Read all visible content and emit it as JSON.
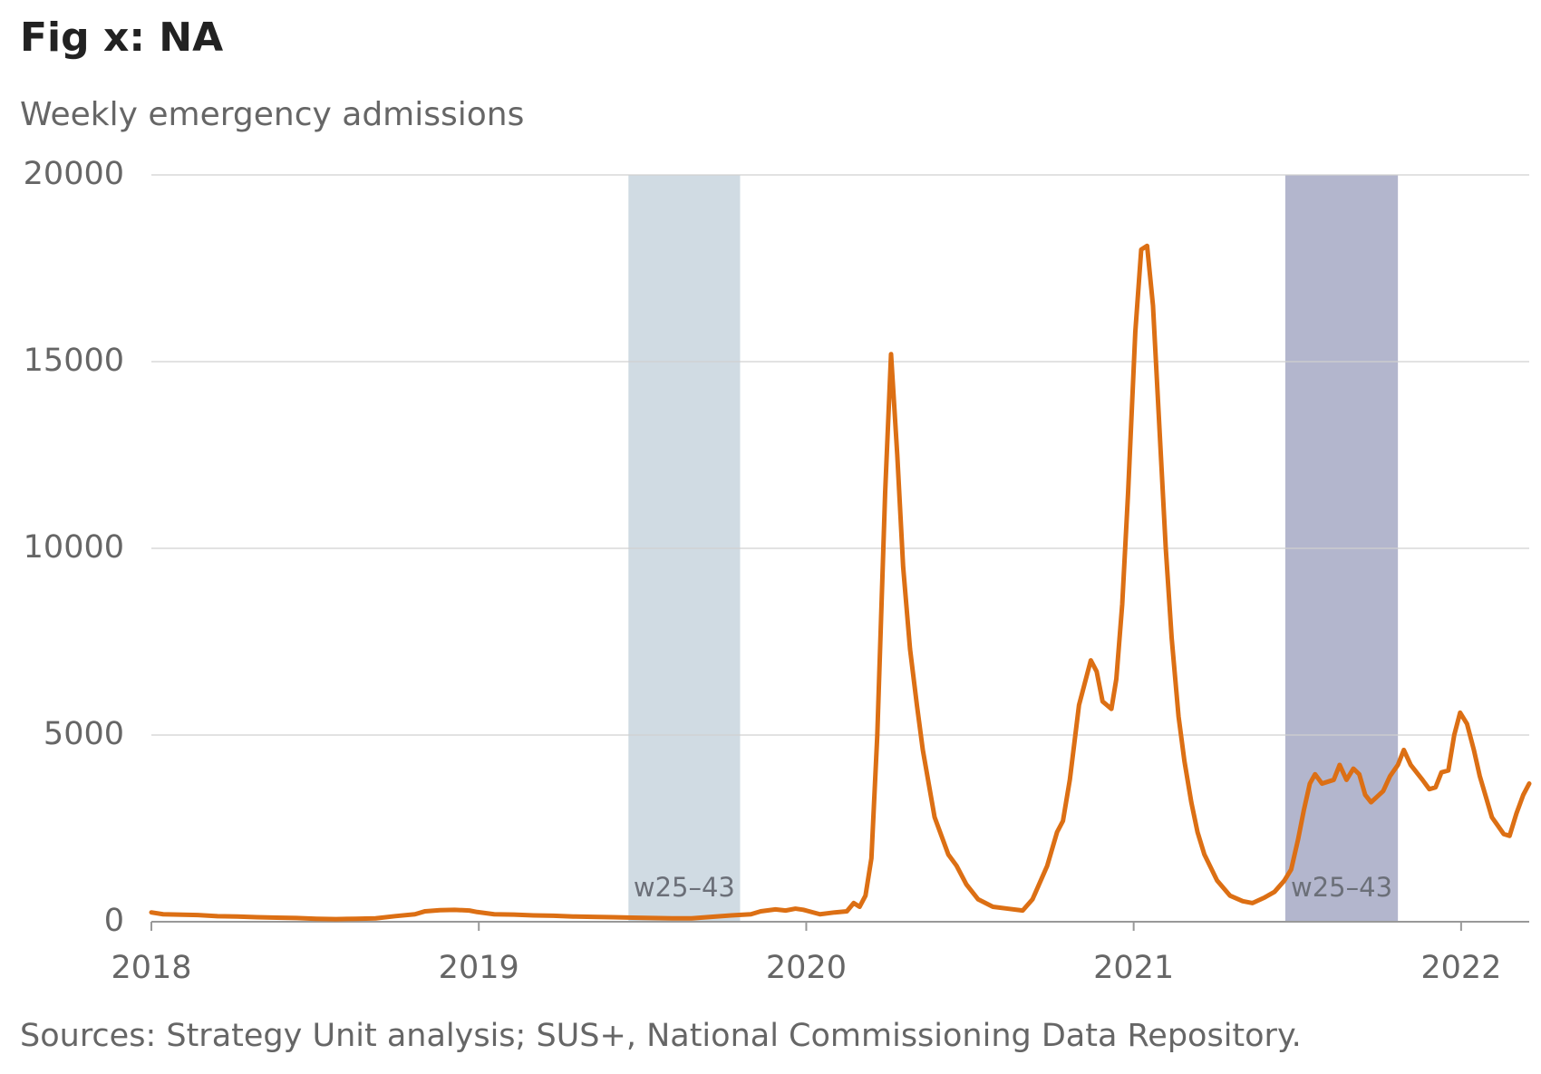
{
  "chart_data": {
    "type": "line",
    "title": "Fig x: NA",
    "subtitle": "Weekly emergency admissions",
    "source": "Sources: Strategy Unit analysis; SUS+, National Commissioning Data Repository.",
    "color": "#dc6f14",
    "x": [
      2018.0,
      2018.036,
      2018.081,
      2018.142,
      2018.202,
      2018.262,
      2018.323,
      2018.383,
      2018.443,
      2018.504,
      2018.564,
      2018.624,
      2018.685,
      2018.745,
      2018.805,
      2018.836,
      2018.881,
      2018.926,
      2018.971,
      2018.995,
      2019.047,
      2019.107,
      2019.167,
      2019.228,
      2019.288,
      2019.348,
      2019.409,
      2019.469,
      2019.529,
      2019.59,
      2019.65,
      2019.71,
      2019.771,
      2019.831,
      2019.861,
      2019.906,
      2019.937,
      2019.967,
      2019.991,
      2020.042,
      2020.087,
      2020.124,
      2020.145,
      2020.163,
      2020.181,
      2020.199,
      2020.217,
      2020.241,
      2020.259,
      2020.278,
      2020.296,
      2020.317,
      2020.338,
      2020.356,
      2020.392,
      2020.434,
      2020.459,
      2020.489,
      2020.525,
      2020.57,
      2020.615,
      2020.661,
      2020.691,
      2020.736,
      2020.766,
      2020.784,
      2020.805,
      2020.833,
      2020.869,
      2020.887,
      2020.905,
      2020.932,
      2020.947,
      2020.965,
      2020.983,
      2021.005,
      2021.023,
      2021.041,
      2021.059,
      2021.077,
      2021.098,
      2021.116,
      2021.137,
      2021.155,
      2021.176,
      2021.195,
      2021.216,
      2021.255,
      2021.294,
      2021.333,
      2021.363,
      2021.4,
      2021.43,
      2021.46,
      2021.481,
      2021.502,
      2021.52,
      2021.538,
      2021.554,
      2021.575,
      2021.611,
      2021.629,
      2021.65,
      2021.671,
      2021.689,
      2021.707,
      2021.725,
      2021.762,
      2021.783,
      2021.807,
      2021.825,
      2021.846,
      2021.882,
      2021.903,
      2021.922,
      2021.94,
      2021.961,
      2021.979,
      2021.997,
      2022.018,
      2022.039,
      2022.057,
      2022.094,
      2022.13,
      2022.148,
      2022.169,
      2022.19,
      2022.208
    ],
    "values": [
      250,
      200,
      190,
      180,
      150,
      140,
      120,
      110,
      100,
      80,
      70,
      80,
      90,
      150,
      200,
      280,
      310,
      320,
      300,
      260,
      200,
      190,
      170,
      160,
      140,
      130,
      120,
      110,
      100,
      90,
      90,
      130,
      170,
      200,
      280,
      330,
      300,
      350,
      320,
      200,
      250,
      280,
      500,
      400,
      700,
      1700,
      5000,
      11500,
      15200,
      12500,
      9500,
      7300,
      5800,
      4600,
      2800,
      1800,
      1500,
      1000,
      600,
      400,
      350,
      300,
      600,
      1500,
      2400,
      2700,
      3800,
      5800,
      7000,
      6700,
      5900,
      5700,
      6500,
      8500,
      11500,
      15800,
      18000,
      18100,
      16500,
      13500,
      10000,
      7600,
      5500,
      4300,
      3200,
      2400,
      1800,
      1100,
      700,
      550,
      500,
      650,
      800,
      1100,
      1400,
      2200,
      3000,
      3700,
      3950,
      3700,
      3800,
      4200,
      3800,
      4100,
      3950,
      3400,
      3200,
      3500,
      3900,
      4200,
      4600,
      4200,
      3800,
      3550,
      3600,
      4000,
      4050,
      5000,
      5600,
      5300,
      4600,
      3900,
      2800,
      2350,
      2300,
      2900,
      3400,
      3700
    ],
    "bands": [
      {
        "label": "w25–43",
        "x": [
          2019.457,
          2019.798
        ],
        "color": "#d0dbe3"
      },
      {
        "label": "w25–43",
        "x": [
          2021.463,
          2021.807
        ],
        "color": "#b3b6cd"
      }
    ],
    "xlim": [
      2018,
      2022.208
    ],
    "xticks": [
      2018,
      2019,
      2020,
      2021,
      2022
    ],
    "ylim": [
      0,
      20000
    ],
    "yticks": [
      0,
      5000,
      10000,
      15000,
      20000
    ],
    "grid": true
  }
}
